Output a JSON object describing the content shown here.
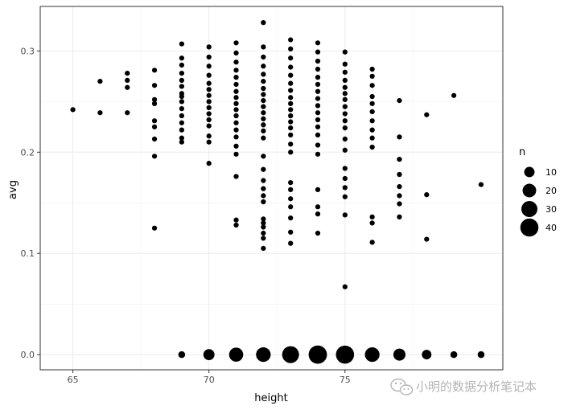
{
  "chart_data": {
    "type": "scatter",
    "title": "",
    "xlabel": "height",
    "ylabel": "avg",
    "xlim": [
      63.8,
      80.8
    ],
    "ylim": [
      -0.015,
      0.344
    ],
    "x_ticks": [
      65,
      70,
      75
    ],
    "y_ticks": [
      0.0,
      0.1,
      0.2,
      0.3
    ],
    "x_tick_labels": [
      "65",
      "70",
      "75"
    ],
    "y_tick_labels": [
      "0.0",
      "0.1",
      "0.2",
      "0.3"
    ],
    "grid": true,
    "theme": "bw",
    "point_color": "#000000",
    "legend": {
      "title": "n",
      "position": "right",
      "entries": [
        {
          "label": "10",
          "value": 10
        },
        {
          "label": "20",
          "value": 20
        },
        {
          "label": "30",
          "value": 30
        },
        {
          "label": "40",
          "value": 40
        }
      ]
    },
    "size_encoding": "n",
    "points": [
      {
        "x": 65,
        "y": 0.242,
        "n": 1
      },
      {
        "x": 66,
        "y": 0.27,
        "n": 1
      },
      {
        "x": 66,
        "y": 0.239,
        "n": 1
      },
      {
        "x": 67,
        "y": 0.278,
        "n": 1
      },
      {
        "x": 67,
        "y": 0.271,
        "n": 1
      },
      {
        "x": 67,
        "y": 0.264,
        "n": 1
      },
      {
        "x": 67,
        "y": 0.239,
        "n": 1
      },
      {
        "x": 68,
        "y": 0.281,
        "n": 1
      },
      {
        "x": 68,
        "y": 0.266,
        "n": 1
      },
      {
        "x": 68,
        "y": 0.252,
        "n": 1
      },
      {
        "x": 68,
        "y": 0.248,
        "n": 1
      },
      {
        "x": 68,
        "y": 0.231,
        "n": 1
      },
      {
        "x": 68,
        "y": 0.225,
        "n": 1
      },
      {
        "x": 68,
        "y": 0.213,
        "n": 1
      },
      {
        "x": 68,
        "y": 0.196,
        "n": 1
      },
      {
        "x": 68,
        "y": 0.125,
        "n": 1
      },
      {
        "x": 69,
        "y": 0.307,
        "n": 1
      },
      {
        "x": 69,
        "y": 0.293,
        "n": 1
      },
      {
        "x": 69,
        "y": 0.286,
        "n": 1
      },
      {
        "x": 69,
        "y": 0.278,
        "n": 1
      },
      {
        "x": 69,
        "y": 0.271,
        "n": 1
      },
      {
        "x": 69,
        "y": 0.265,
        "n": 1
      },
      {
        "x": 69,
        "y": 0.258,
        "n": 1
      },
      {
        "x": 69,
        "y": 0.255,
        "n": 1
      },
      {
        "x": 69,
        "y": 0.25,
        "n": 1
      },
      {
        "x": 69,
        "y": 0.243,
        "n": 1
      },
      {
        "x": 69,
        "y": 0.236,
        "n": 1
      },
      {
        "x": 69,
        "y": 0.229,
        "n": 1
      },
      {
        "x": 69,
        "y": 0.222,
        "n": 1
      },
      {
        "x": 69,
        "y": 0.214,
        "n": 1
      },
      {
        "x": 69,
        "y": 0.21,
        "n": 1
      },
      {
        "x": 70,
        "y": 0.304,
        "n": 1
      },
      {
        "x": 70,
        "y": 0.294,
        "n": 1
      },
      {
        "x": 70,
        "y": 0.285,
        "n": 1
      },
      {
        "x": 70,
        "y": 0.276,
        "n": 1
      },
      {
        "x": 70,
        "y": 0.268,
        "n": 1
      },
      {
        "x": 70,
        "y": 0.262,
        "n": 1
      },
      {
        "x": 70,
        "y": 0.256,
        "n": 1
      },
      {
        "x": 70,
        "y": 0.25,
        "n": 1
      },
      {
        "x": 70,
        "y": 0.244,
        "n": 1
      },
      {
        "x": 70,
        "y": 0.238,
        "n": 1
      },
      {
        "x": 70,
        "y": 0.232,
        "n": 1
      },
      {
        "x": 70,
        "y": 0.226,
        "n": 1
      },
      {
        "x": 70,
        "y": 0.216,
        "n": 1
      },
      {
        "x": 70,
        "y": 0.21,
        "n": 1
      },
      {
        "x": 70,
        "y": 0.189,
        "n": 1
      },
      {
        "x": 71,
        "y": 0.308,
        "n": 1
      },
      {
        "x": 71,
        "y": 0.298,
        "n": 1
      },
      {
        "x": 71,
        "y": 0.289,
        "n": 1
      },
      {
        "x": 71,
        "y": 0.281,
        "n": 1
      },
      {
        "x": 71,
        "y": 0.274,
        "n": 1
      },
      {
        "x": 71,
        "y": 0.267,
        "n": 1
      },
      {
        "x": 71,
        "y": 0.26,
        "n": 1
      },
      {
        "x": 71,
        "y": 0.254,
        "n": 1
      },
      {
        "x": 71,
        "y": 0.248,
        "n": 1
      },
      {
        "x": 71,
        "y": 0.242,
        "n": 1
      },
      {
        "x": 71,
        "y": 0.236,
        "n": 1
      },
      {
        "x": 71,
        "y": 0.229,
        "n": 1
      },
      {
        "x": 71,
        "y": 0.222,
        "n": 1
      },
      {
        "x": 71,
        "y": 0.215,
        "n": 1
      },
      {
        "x": 71,
        "y": 0.206,
        "n": 1
      },
      {
        "x": 71,
        "y": 0.198,
        "n": 1
      },
      {
        "x": 71,
        "y": 0.176,
        "n": 1
      },
      {
        "x": 71,
        "y": 0.133,
        "n": 1
      },
      {
        "x": 71,
        "y": 0.128,
        "n": 1
      },
      {
        "x": 72,
        "y": 0.328,
        "n": 1
      },
      {
        "x": 72,
        "y": 0.304,
        "n": 1
      },
      {
        "x": 72,
        "y": 0.294,
        "n": 1
      },
      {
        "x": 72,
        "y": 0.285,
        "n": 1
      },
      {
        "x": 72,
        "y": 0.277,
        "n": 1
      },
      {
        "x": 72,
        "y": 0.27,
        "n": 1
      },
      {
        "x": 72,
        "y": 0.263,
        "n": 1
      },
      {
        "x": 72,
        "y": 0.257,
        "n": 1
      },
      {
        "x": 72,
        "y": 0.251,
        "n": 1
      },
      {
        "x": 72,
        "y": 0.245,
        "n": 1
      },
      {
        "x": 72,
        "y": 0.239,
        "n": 1
      },
      {
        "x": 72,
        "y": 0.233,
        "n": 1
      },
      {
        "x": 72,
        "y": 0.227,
        "n": 1
      },
      {
        "x": 72,
        "y": 0.221,
        "n": 1
      },
      {
        "x": 72,
        "y": 0.214,
        "n": 1
      },
      {
        "x": 72,
        "y": 0.196,
        "n": 1
      },
      {
        "x": 72,
        "y": 0.183,
        "n": 1
      },
      {
        "x": 72,
        "y": 0.172,
        "n": 1
      },
      {
        "x": 72,
        "y": 0.164,
        "n": 1
      },
      {
        "x": 72,
        "y": 0.157,
        "n": 1
      },
      {
        "x": 72,
        "y": 0.151,
        "n": 1
      },
      {
        "x": 72,
        "y": 0.134,
        "n": 1
      },
      {
        "x": 72,
        "y": 0.13,
        "n": 1
      },
      {
        "x": 72,
        "y": 0.126,
        "n": 1
      },
      {
        "x": 72,
        "y": 0.12,
        "n": 1
      },
      {
        "x": 72,
        "y": 0.115,
        "n": 1
      },
      {
        "x": 72,
        "y": 0.105,
        "n": 1
      },
      {
        "x": 73,
        "y": 0.311,
        "n": 1
      },
      {
        "x": 73,
        "y": 0.302,
        "n": 1
      },
      {
        "x": 73,
        "y": 0.293,
        "n": 1
      },
      {
        "x": 73,
        "y": 0.284,
        "n": 1
      },
      {
        "x": 73,
        "y": 0.276,
        "n": 1
      },
      {
        "x": 73,
        "y": 0.268,
        "n": 1
      },
      {
        "x": 73,
        "y": 0.261,
        "n": 1
      },
      {
        "x": 73,
        "y": 0.254,
        "n": 1
      },
      {
        "x": 73,
        "y": 0.248,
        "n": 1
      },
      {
        "x": 73,
        "y": 0.242,
        "n": 1
      },
      {
        "x": 73,
        "y": 0.236,
        "n": 1
      },
      {
        "x": 73,
        "y": 0.23,
        "n": 1
      },
      {
        "x": 73,
        "y": 0.224,
        "n": 1
      },
      {
        "x": 73,
        "y": 0.217,
        "n": 1
      },
      {
        "x": 73,
        "y": 0.208,
        "n": 1
      },
      {
        "x": 73,
        "y": 0.2,
        "n": 1
      },
      {
        "x": 73,
        "y": 0.17,
        "n": 1
      },
      {
        "x": 73,
        "y": 0.163,
        "n": 1
      },
      {
        "x": 73,
        "y": 0.154,
        "n": 1
      },
      {
        "x": 73,
        "y": 0.146,
        "n": 1
      },
      {
        "x": 73,
        "y": 0.135,
        "n": 1
      },
      {
        "x": 73,
        "y": 0.121,
        "n": 1
      },
      {
        "x": 73,
        "y": 0.11,
        "n": 1
      },
      {
        "x": 74,
        "y": 0.308,
        "n": 1
      },
      {
        "x": 74,
        "y": 0.299,
        "n": 1
      },
      {
        "x": 74,
        "y": 0.29,
        "n": 1
      },
      {
        "x": 74,
        "y": 0.282,
        "n": 1
      },
      {
        "x": 74,
        "y": 0.274,
        "n": 1
      },
      {
        "x": 74,
        "y": 0.267,
        "n": 1
      },
      {
        "x": 74,
        "y": 0.26,
        "n": 1
      },
      {
        "x": 74,
        "y": 0.253,
        "n": 1
      },
      {
        "x": 74,
        "y": 0.246,
        "n": 1
      },
      {
        "x": 74,
        "y": 0.239,
        "n": 1
      },
      {
        "x": 74,
        "y": 0.232,
        "n": 1
      },
      {
        "x": 74,
        "y": 0.225,
        "n": 1
      },
      {
        "x": 74,
        "y": 0.217,
        "n": 1
      },
      {
        "x": 74,
        "y": 0.207,
        "n": 1
      },
      {
        "x": 74,
        "y": 0.198,
        "n": 1
      },
      {
        "x": 74,
        "y": 0.163,
        "n": 1
      },
      {
        "x": 74,
        "y": 0.146,
        "n": 1
      },
      {
        "x": 74,
        "y": 0.139,
        "n": 1
      },
      {
        "x": 74,
        "y": 0.12,
        "n": 1
      },
      {
        "x": 75,
        "y": 0.299,
        "n": 1
      },
      {
        "x": 75,
        "y": 0.287,
        "n": 1
      },
      {
        "x": 75,
        "y": 0.279,
        "n": 1
      },
      {
        "x": 75,
        "y": 0.271,
        "n": 1
      },
      {
        "x": 75,
        "y": 0.264,
        "n": 1
      },
      {
        "x": 75,
        "y": 0.258,
        "n": 1
      },
      {
        "x": 75,
        "y": 0.252,
        "n": 1
      },
      {
        "x": 75,
        "y": 0.245,
        "n": 1
      },
      {
        "x": 75,
        "y": 0.238,
        "n": 1
      },
      {
        "x": 75,
        "y": 0.231,
        "n": 1
      },
      {
        "x": 75,
        "y": 0.224,
        "n": 1
      },
      {
        "x": 75,
        "y": 0.213,
        "n": 1
      },
      {
        "x": 75,
        "y": 0.202,
        "n": 1
      },
      {
        "x": 75,
        "y": 0.184,
        "n": 1
      },
      {
        "x": 75,
        "y": 0.174,
        "n": 1
      },
      {
        "x": 75,
        "y": 0.165,
        "n": 1
      },
      {
        "x": 75,
        "y": 0.156,
        "n": 1
      },
      {
        "x": 75,
        "y": 0.138,
        "n": 1
      },
      {
        "x": 75,
        "y": 0.067,
        "n": 1
      },
      {
        "x": 76,
        "y": 0.282,
        "n": 1
      },
      {
        "x": 76,
        "y": 0.275,
        "n": 1
      },
      {
        "x": 76,
        "y": 0.266,
        "n": 1
      },
      {
        "x": 76,
        "y": 0.255,
        "n": 1
      },
      {
        "x": 76,
        "y": 0.248,
        "n": 1
      },
      {
        "x": 76,
        "y": 0.24,
        "n": 1
      },
      {
        "x": 76,
        "y": 0.231,
        "n": 1
      },
      {
        "x": 76,
        "y": 0.222,
        "n": 1
      },
      {
        "x": 76,
        "y": 0.214,
        "n": 1
      },
      {
        "x": 76,
        "y": 0.205,
        "n": 1
      },
      {
        "x": 76,
        "y": 0.136,
        "n": 1
      },
      {
        "x": 76,
        "y": 0.13,
        "n": 1
      },
      {
        "x": 76,
        "y": 0.111,
        "n": 1
      },
      {
        "x": 77,
        "y": 0.251,
        "n": 1
      },
      {
        "x": 77,
        "y": 0.215,
        "n": 1
      },
      {
        "x": 77,
        "y": 0.193,
        "n": 1
      },
      {
        "x": 77,
        "y": 0.178,
        "n": 1
      },
      {
        "x": 77,
        "y": 0.166,
        "n": 1
      },
      {
        "x": 77,
        "y": 0.157,
        "n": 1
      },
      {
        "x": 77,
        "y": 0.149,
        "n": 1
      },
      {
        "x": 77,
        "y": 0.136,
        "n": 1
      },
      {
        "x": 78,
        "y": 0.237,
        "n": 1
      },
      {
        "x": 78,
        "y": 0.158,
        "n": 1
      },
      {
        "x": 78,
        "y": 0.114,
        "n": 1
      },
      {
        "x": 79,
        "y": 0.256,
        "n": 1
      },
      {
        "x": 80,
        "y": 0.168,
        "n": 1
      },
      {
        "x": 69,
        "y": 0.0,
        "n": 3
      },
      {
        "x": 70,
        "y": 0.0,
        "n": 12
      },
      {
        "x": 71,
        "y": 0.0,
        "n": 22
      },
      {
        "x": 72,
        "y": 0.0,
        "n": 24
      },
      {
        "x": 73,
        "y": 0.0,
        "n": 34
      },
      {
        "x": 74,
        "y": 0.0,
        "n": 41
      },
      {
        "x": 75,
        "y": 0.0,
        "n": 40
      },
      {
        "x": 76,
        "y": 0.0,
        "n": 24
      },
      {
        "x": 77,
        "y": 0.0,
        "n": 15
      },
      {
        "x": 78,
        "y": 0.0,
        "n": 8
      },
      {
        "x": 79,
        "y": 0.0,
        "n": 3
      },
      {
        "x": 80,
        "y": 0.0,
        "n": 3
      }
    ]
  },
  "watermark": {
    "text": "小明的数据分析笔记本",
    "icon": "wechat-icon"
  }
}
